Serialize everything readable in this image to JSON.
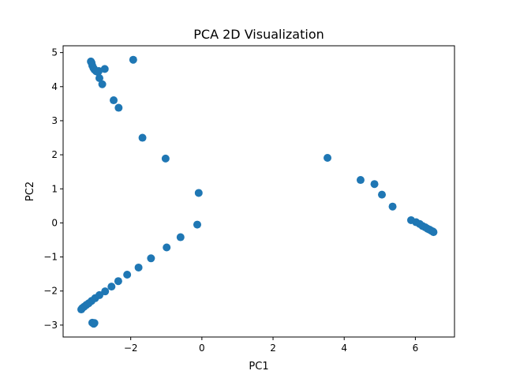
{
  "chart_data": {
    "type": "scatter",
    "title": "PCA 2D Visualization",
    "xlabel": "PC1",
    "ylabel": "PC2",
    "xlim": [
      -3.9,
      7.1
    ],
    "ylim": [
      -3.35,
      5.2
    ],
    "x_ticks": [
      {
        "value": -2,
        "label": "−2"
      },
      {
        "value": 0,
        "label": "0"
      },
      {
        "value": 2,
        "label": "2"
      },
      {
        "value": 4,
        "label": "4"
      },
      {
        "value": 6,
        "label": "6"
      }
    ],
    "y_ticks": [
      {
        "value": -3,
        "label": "−3"
      },
      {
        "value": -2,
        "label": "−2"
      },
      {
        "value": -1,
        "label": "−1"
      },
      {
        "value": 0,
        "label": "0"
      },
      {
        "value": 1,
        "label": "1"
      },
      {
        "value": 2,
        "label": "2"
      },
      {
        "value": 3,
        "label": "3"
      },
      {
        "value": 4,
        "label": "4"
      },
      {
        "value": 5,
        "label": "5"
      }
    ],
    "grid": false,
    "marker_color": "#1f77b4",
    "series": [
      {
        "points": [
          {
            "x": -3.12,
            "y": 4.74
          },
          {
            "x": -3.1,
            "y": 4.7
          },
          {
            "x": -3.08,
            "y": 4.62
          },
          {
            "x": -3.05,
            "y": 4.55
          },
          {
            "x": -3.02,
            "y": 4.5
          },
          {
            "x": -2.97,
            "y": 4.45
          },
          {
            "x": -2.92,
            "y": 4.43
          },
          {
            "x": -2.9,
            "y": 4.46
          },
          {
            "x": -2.73,
            "y": 4.52
          },
          {
            "x": -2.88,
            "y": 4.25
          },
          {
            "x": -2.8,
            "y": 4.07
          },
          {
            "x": -1.93,
            "y": 4.79
          },
          {
            "x": -2.48,
            "y": 3.6
          },
          {
            "x": -2.34,
            "y": 3.38
          },
          {
            "x": -1.67,
            "y": 2.5
          },
          {
            "x": -1.02,
            "y": 1.89
          },
          {
            "x": -0.09,
            "y": 0.88
          },
          {
            "x": -0.13,
            "y": -0.05
          },
          {
            "x": -0.6,
            "y": -0.42
          },
          {
            "x": -0.99,
            "y": -0.72
          },
          {
            "x": -1.43,
            "y": -1.04
          },
          {
            "x": -1.78,
            "y": -1.31
          },
          {
            "x": -2.1,
            "y": -1.52
          },
          {
            "x": -2.35,
            "y": -1.71
          },
          {
            "x": -2.54,
            "y": -1.87
          },
          {
            "x": -2.72,
            "y": -2.01
          },
          {
            "x": -2.88,
            "y": -2.12
          },
          {
            "x": -3.0,
            "y": -2.21
          },
          {
            "x": -3.1,
            "y": -2.29
          },
          {
            "x": -3.18,
            "y": -2.36
          },
          {
            "x": -3.25,
            "y": -2.41
          },
          {
            "x": -3.31,
            "y": -2.46
          },
          {
            "x": -3.36,
            "y": -2.5
          },
          {
            "x": -3.39,
            "y": -2.54
          },
          {
            "x": -3.08,
            "y": -2.93
          },
          {
            "x": -3.05,
            "y": -2.95
          },
          {
            "x": -3.02,
            "y": -2.94
          },
          {
            "x": -3.04,
            "y": -2.96
          },
          {
            "x": 3.53,
            "y": 1.91
          },
          {
            "x": 4.46,
            "y": 1.26
          },
          {
            "x": 4.85,
            "y": 1.14
          },
          {
            "x": 5.06,
            "y": 0.83
          },
          {
            "x": 5.36,
            "y": 0.48
          },
          {
            "x": 5.88,
            "y": 0.08
          },
          {
            "x": 6.02,
            "y": 0.02
          },
          {
            "x": 6.12,
            "y": -0.03
          },
          {
            "x": 6.2,
            "y": -0.09
          },
          {
            "x": 6.28,
            "y": -0.13
          },
          {
            "x": 6.34,
            "y": -0.17
          },
          {
            "x": 6.4,
            "y": -0.2
          },
          {
            "x": 6.45,
            "y": -0.23
          },
          {
            "x": 6.49,
            "y": -0.25
          },
          {
            "x": 6.51,
            "y": -0.27
          }
        ]
      }
    ]
  }
}
